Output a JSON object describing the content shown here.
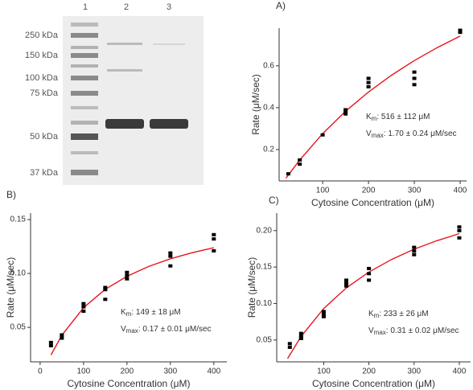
{
  "gel": {
    "lane_labels": [
      "1",
      "2",
      "3"
    ],
    "marker_labels": [
      "250 kDa",
      "150 kDa",
      "100 kDa",
      "75 kDa",
      "50 kDa",
      "37 kDa"
    ]
  },
  "chart_data": [
    {
      "type": "scatter",
      "panel": "A)",
      "x_label": "Cytosine Concentration (μM)",
      "y_label": "Rate (μM/sec)",
      "xlim": [
        5,
        414
      ],
      "ylim": [
        0.05,
        0.78
      ],
      "xticks": [
        100,
        200,
        300,
        400
      ],
      "yticks": [
        0.2,
        0.4,
        0.6
      ],
      "points": {
        "color": "#000000",
        "x": [
          25,
          50,
          50,
          100,
          150,
          150,
          150,
          200,
          200,
          200,
          300,
          300,
          300,
          400,
          400
        ],
        "values": [
          0.084,
          0.15,
          0.13,
          0.27,
          0.39,
          0.38,
          0.37,
          0.54,
          0.52,
          0.5,
          0.57,
          0.54,
          0.51,
          0.77,
          0.76
        ]
      },
      "fit": {
        "color": "#e8141c",
        "x": [
          20,
          50,
          100,
          150,
          200,
          250,
          300,
          350,
          400
        ],
        "values": [
          0.063,
          0.15,
          0.276,
          0.383,
          0.475,
          0.555,
          0.625,
          0.687,
          0.742
        ]
      },
      "annotations": [
        {
          "symbol": "K",
          "sub": "m",
          "text": ": 516 ± 112 μM"
        },
        {
          "symbol": "V",
          "sub": "max",
          "text": ": 1.70 ± 0.24 μM/sec"
        }
      ]
    },
    {
      "type": "scatter",
      "panel": "B)",
      "x_label": "Cytosine Concentration (μM)",
      "y_label": "Rate (μM/sec)",
      "xlim": [
        -22,
        430
      ],
      "ylim": [
        0.018,
        0.156
      ],
      "xticks": [
        0,
        100,
        200,
        300,
        400
      ],
      "yticks": [
        0.05,
        {
          "value": 0.1,
          "label": "0.10"
        },
        0.15
      ],
      "points": {
        "color": "#000000",
        "x": [
          25,
          25,
          50,
          50,
          100,
          100,
          100,
          150,
          150,
          150,
          200,
          200,
          200,
          300,
          300,
          300,
          400,
          400,
          400
        ],
        "values": [
          0.036,
          0.033,
          0.043,
          0.04,
          0.072,
          0.069,
          0.065,
          0.087,
          0.085,
          0.076,
          0.101,
          0.098,
          0.095,
          0.119,
          0.116,
          0.107,
          0.136,
          0.132,
          0.121
        ]
      },
      "fit": {
        "color": "#e8141c",
        "x": [
          25,
          50,
          100,
          150,
          200,
          250,
          300,
          350,
          400
        ],
        "values": [
          0.0244,
          0.0427,
          0.0683,
          0.0853,
          0.0974,
          0.1065,
          0.1136,
          0.1192,
          0.1239
        ]
      },
      "annotations": [
        {
          "symbol": "K",
          "sub": "m",
          "text": ": 149 ± 18 μM"
        },
        {
          "symbol": "V",
          "sub": "max",
          "text": ": 0.17 ± 0.01 μM/sec"
        }
      ]
    },
    {
      "type": "scatter",
      "panel": "C)",
      "x_label": "Cytosine Concentration (μM)",
      "y_label": "Rate (μM/sec)",
      "xlim": [
        -4,
        425
      ],
      "ylim": [
        0.02,
        0.224
      ],
      "xticks": [
        100,
        200,
        300,
        400
      ],
      "yticks": [
        0.05,
        {
          "value": 0.1,
          "label": "0.10"
        },
        0.15,
        {
          "value": 0.2,
          "label": "0.20"
        }
      ],
      "points": {
        "color": "#000000",
        "x": [
          25,
          25,
          50,
          50,
          50,
          100,
          100,
          100,
          150,
          150,
          150,
          200,
          200,
          200,
          300,
          300,
          300,
          400,
          400,
          400
        ],
        "values": [
          0.045,
          0.04,
          0.059,
          0.055,
          0.052,
          0.089,
          0.085,
          0.082,
          0.132,
          0.128,
          0.124,
          0.148,
          0.141,
          0.132,
          0.177,
          0.172,
          0.167,
          0.205,
          0.2,
          0.19
        ]
      },
      "fit": {
        "color": "#e8141c",
        "x": [
          20,
          50,
          100,
          150,
          200,
          250,
          300,
          350,
          400
        ],
        "values": [
          0.0245,
          0.0548,
          0.0931,
          0.1214,
          0.1432,
          0.1604,
          0.1745,
          0.1861,
          0.1959
        ]
      },
      "annotations": [
        {
          "symbol": "K",
          "sub": "m",
          "text": ": 233 ± 26 μM"
        },
        {
          "symbol": "V",
          "sub": "max",
          "text": ": 0.31 ± 0.02 μM/sec"
        }
      ]
    }
  ]
}
